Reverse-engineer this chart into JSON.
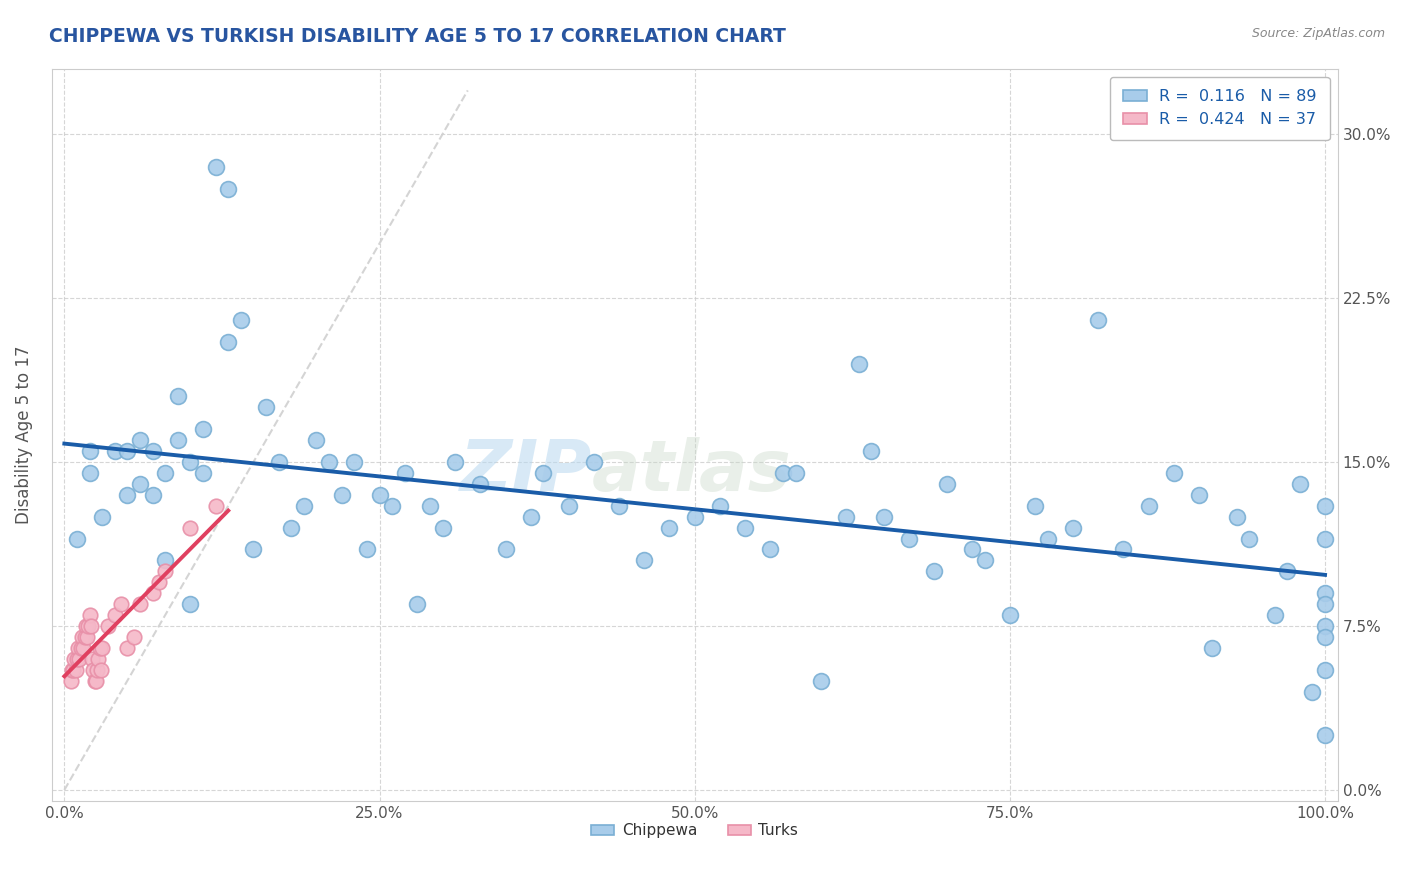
{
  "title": "CHIPPEWA VS TURKISH DISABILITY AGE 5 TO 17 CORRELATION CHART",
  "source": "Source: ZipAtlas.com",
  "xlabel": "",
  "ylabel": "Disability Age 5 to 17",
  "xlim": [
    -1,
    101
  ],
  "ylim": [
    -0.5,
    33
  ],
  "yticks": [
    0,
    7.5,
    15.0,
    22.5,
    30.0
  ],
  "xticks": [
    0,
    25,
    50,
    75,
    100
  ],
  "xtick_labels": [
    "0.0%",
    "25.0%",
    "50.0%",
    "75.0%",
    "100.0%"
  ],
  "ytick_labels": [
    "0.0%",
    "7.5%",
    "15.0%",
    "22.5%",
    "30.0%"
  ],
  "chippewa_R": 0.116,
  "chippewa_N": 89,
  "turks_R": 0.424,
  "turks_N": 37,
  "chippewa_color": "#A8CCEA",
  "turks_color": "#F5B8C8",
  "chippewa_edge": "#7AAFD4",
  "turks_edge": "#E890A8",
  "regression_chippewa_color": "#1A5CA8",
  "regression_turks_color": "#E04060",
  "diagonal_color": "#D0D0D0",
  "background_color": "#FFFFFF",
  "grid_color": "#CCCCCC",
  "watermark_zip": "ZIP",
  "watermark_atlas": "atlas",
  "chippewa_x": [
    1,
    2,
    2,
    3,
    4,
    5,
    5,
    6,
    6,
    7,
    7,
    8,
    8,
    9,
    9,
    10,
    10,
    11,
    11,
    12,
    13,
    13,
    14,
    15,
    16,
    17,
    18,
    19,
    20,
    21,
    22,
    23,
    24,
    25,
    26,
    27,
    28,
    29,
    30,
    31,
    33,
    35,
    37,
    38,
    40,
    42,
    44,
    46,
    48,
    50,
    52,
    54,
    56,
    57,
    58,
    60,
    62,
    63,
    64,
    65,
    67,
    69,
    70,
    72,
    73,
    75,
    77,
    78,
    80,
    82,
    84,
    86,
    88,
    90,
    91,
    93,
    94,
    96,
    97,
    98,
    99,
    100,
    100,
    100,
    100,
    100,
    100,
    100,
    100
  ],
  "chippewa_y": [
    11.5,
    14.5,
    15.5,
    12.5,
    15.5,
    13.5,
    15.5,
    14.0,
    16.0,
    13.5,
    15.5,
    10.5,
    14.5,
    16.0,
    18.0,
    8.5,
    15.0,
    14.5,
    16.5,
    28.5,
    27.5,
    20.5,
    21.5,
    11.0,
    17.5,
    15.0,
    12.0,
    13.0,
    16.0,
    15.0,
    13.5,
    15.0,
    11.0,
    13.5,
    13.0,
    14.5,
    8.5,
    13.0,
    12.0,
    15.0,
    14.0,
    11.0,
    12.5,
    14.5,
    13.0,
    15.0,
    13.0,
    10.5,
    12.0,
    12.5,
    13.0,
    12.0,
    11.0,
    14.5,
    14.5,
    5.0,
    12.5,
    19.5,
    15.5,
    12.5,
    11.5,
    10.0,
    14.0,
    11.0,
    10.5,
    8.0,
    13.0,
    11.5,
    12.0,
    21.5,
    11.0,
    13.0,
    14.5,
    13.5,
    6.5,
    12.5,
    11.5,
    8.0,
    10.0,
    14.0,
    4.5,
    2.5,
    13.0,
    9.0,
    8.5,
    11.5,
    7.5,
    5.5,
    7.0
  ],
  "turks_x": [
    0.5,
    0.6,
    0.7,
    0.8,
    0.9,
    1.0,
    1.1,
    1.2,
    1.3,
    1.4,
    1.5,
    1.6,
    1.7,
    1.8,
    1.9,
    2.0,
    2.1,
    2.2,
    2.3,
    2.4,
    2.5,
    2.6,
    2.7,
    2.8,
    2.9,
    3.0,
    3.5,
    4.0,
    4.5,
    5.0,
    5.5,
    6.0,
    7.0,
    7.5,
    8.0,
    10.0,
    12.0
  ],
  "turks_y": [
    5.0,
    5.5,
    5.5,
    6.0,
    5.5,
    6.0,
    6.5,
    6.0,
    6.5,
    7.0,
    6.5,
    7.0,
    7.5,
    7.0,
    7.5,
    8.0,
    7.5,
    6.0,
    5.5,
    5.0,
    5.0,
    5.5,
    6.0,
    6.5,
    5.5,
    6.5,
    7.5,
    8.0,
    8.5,
    6.5,
    7.0,
    8.5,
    9.0,
    9.5,
    10.0,
    12.0,
    13.0
  ]
}
